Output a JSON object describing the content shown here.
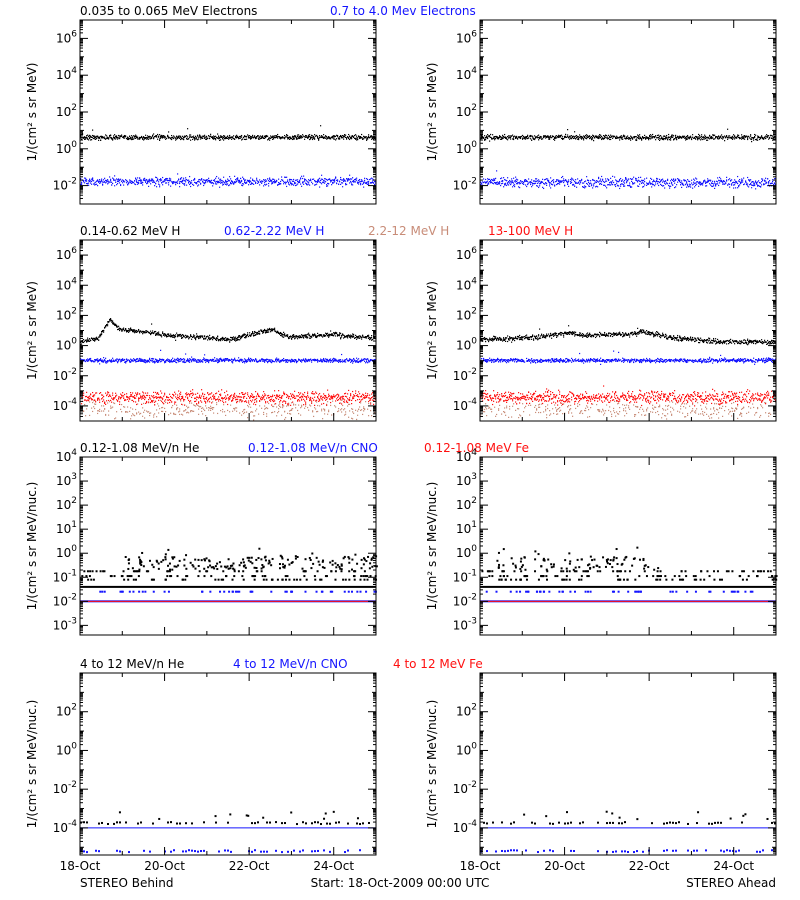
{
  "colors": {
    "black": "#000000",
    "blue": "#1414ff",
    "tan": "#c88c78",
    "red": "#ff1010"
  },
  "chart_data": [
    {
      "type": "scatter",
      "row": 0,
      "legend": [
        {
          "text": "0.035 to 0.065 MeV Electrons",
          "color": "black"
        },
        {
          "text": "0.7 to 4.0 Mev Electrons",
          "color": "blue"
        }
      ],
      "ylabel": "1/(cm² s sr MeV)",
      "yscale": "log",
      "ylim_exp": [
        -3,
        7
      ],
      "ytick_exps": [
        -2,
        0,
        2,
        4,
        6
      ],
      "panels": {
        "behind": [
          {
            "color": "black",
            "base_exp": 0.65,
            "noise": 0.06,
            "density": 0.9
          },
          {
            "color": "blue",
            "base_exp": -1.75,
            "noise": 0.1,
            "density": 0.9
          }
        ],
        "ahead": [
          {
            "color": "black",
            "base_exp": 0.65,
            "noise": 0.06,
            "density": 0.9
          },
          {
            "color": "blue",
            "base_exp": -1.8,
            "noise": 0.12,
            "density": 0.9
          }
        ]
      }
    },
    {
      "type": "scatter",
      "row": 1,
      "legend": [
        {
          "text": "0.14-0.62 MeV H",
          "color": "black"
        },
        {
          "text": "0.62-2.22 MeV H",
          "color": "blue"
        },
        {
          "text": "2.2-12 MeV H",
          "color": "tan"
        },
        {
          "text": "13-100 MeV H",
          "color": "red"
        }
      ],
      "ylabel": "1/(cm² s sr MeV)",
      "yscale": "log",
      "ylim_exp": [
        -5,
        7
      ],
      "ytick_exps": [
        -4,
        -2,
        0,
        2,
        4,
        6
      ],
      "panels": {
        "behind": [
          {
            "color": "tan",
            "base_exp": -4.2,
            "noise": 0.25,
            "density": 0.4
          },
          {
            "color": "red",
            "base_exp": -3.4,
            "noise": 0.18,
            "density": 0.9
          },
          {
            "color": "blue",
            "base_exp": -0.95,
            "noise": 0.06,
            "density": 0.9
          },
          {
            "color": "black",
            "base_exp": 0.2,
            "noise": 0.07,
            "density": 0.9,
            "profile": [
              [
                0,
                0.1
              ],
              [
                0.06,
                0.3
              ],
              [
                0.1,
                1.6
              ],
              [
                0.13,
                0.9
              ],
              [
                0.2,
                0.8
              ],
              [
                0.3,
                0.5
              ],
              [
                0.45,
                0.35
              ],
              [
                0.5,
                0.2
              ],
              [
                0.6,
                0.7
              ],
              [
                0.65,
                0.9
              ],
              [
                0.7,
                0.4
              ],
              [
                0.8,
                0.5
              ],
              [
                0.85,
                0.6
              ],
              [
                0.9,
                0.45
              ],
              [
                1.0,
                0.35
              ]
            ]
          }
        ],
        "ahead": [
          {
            "color": "tan",
            "base_exp": -4.2,
            "noise": 0.25,
            "density": 0.4
          },
          {
            "color": "red",
            "base_exp": -3.4,
            "noise": 0.18,
            "density": 0.9
          },
          {
            "color": "blue",
            "base_exp": -0.95,
            "noise": 0.06,
            "density": 0.9
          },
          {
            "color": "black",
            "base_exp": 0.2,
            "noise": 0.07,
            "density": 0.9,
            "profile": [
              [
                0,
                0.2
              ],
              [
                0.2,
                0.4
              ],
              [
                0.3,
                0.7
              ],
              [
                0.35,
                0.5
              ],
              [
                0.5,
                0.6
              ],
              [
                0.55,
                0.75
              ],
              [
                0.65,
                0.35
              ],
              [
                0.8,
                0.1
              ],
              [
                1.0,
                0.05
              ]
            ]
          }
        ]
      }
    },
    {
      "type": "scatter",
      "row": 2,
      "legend": [
        {
          "text": "0.12-1.08 MeV/n He",
          "color": "black"
        },
        {
          "text": "0.12-1.08 MeV/n CNO",
          "color": "blue"
        },
        {
          "text": "0.12-1.08 MeV Fe",
          "color": "red"
        }
      ],
      "ylabel": "1/(cm² s sr MeV/nuc.)",
      "yscale": "log",
      "ylim_exp": [
        -3.4,
        4
      ],
      "ytick_exps": [
        -3,
        -2,
        -1,
        0,
        1,
        2,
        3,
        4
      ],
      "panels": {
        "behind": [
          {
            "color": "black",
            "style": "levels",
            "levels": [
              -1.4,
              -1.1,
              -0.95,
              -0.75
            ],
            "base_exp": -1.1,
            "burst": [
              [
                0.15,
                0.6
              ],
              [
                0.55,
                1.0
              ]
            ]
          },
          {
            "color": "blue",
            "style": "levels",
            "levels": [
              -2.0,
              -1.6
            ],
            "base_exp": -2.0
          },
          {
            "color": "red",
            "style": "line",
            "base_exp": -2.0
          }
        ],
        "ahead": [
          {
            "color": "black",
            "style": "levels",
            "levels": [
              -1.4,
              -1.1,
              -0.95,
              -0.75
            ],
            "base_exp": -1.1,
            "burst": [
              [
                0.05,
                0.6
              ]
            ]
          },
          {
            "color": "blue",
            "style": "levels",
            "levels": [
              -2.0,
              -1.6
            ],
            "base_exp": -2.0
          },
          {
            "color": "red",
            "style": "line",
            "base_exp": -2.0
          }
        ]
      }
    },
    {
      "type": "scatter",
      "row": 3,
      "legend": [
        {
          "text": "4 to 12 MeV/n He",
          "color": "black"
        },
        {
          "text": "4 to 12 MeV/n CNO",
          "color": "blue"
        },
        {
          "text": "4 to 12 MeV Fe",
          "color": "red"
        }
      ],
      "ylabel": "1/(cm² s sr MeV/nuc.)",
      "yscale": "log",
      "ylim_exp": [
        -5.4,
        4
      ],
      "ytick_exps": [
        -4,
        -2,
        0,
        2
      ],
      "xticks": [
        "18-Oct",
        "20-Oct",
        "22-Oct",
        "24-Oct"
      ],
      "panels": {
        "behind": [
          {
            "color": "black",
            "style": "sparse",
            "base_exp": -3.7
          },
          {
            "color": "blue",
            "style": "line",
            "base_exp": -4.0
          },
          {
            "color": "blue",
            "style": "sparse",
            "base_exp": -5.15
          }
        ],
        "ahead": [
          {
            "color": "black",
            "style": "sparse",
            "base_exp": -3.7
          },
          {
            "color": "blue",
            "style": "line",
            "base_exp": -4.0
          },
          {
            "color": "blue",
            "style": "sparse",
            "base_exp": -5.15
          }
        ]
      }
    }
  ],
  "footer": {
    "left": "STEREO Behind",
    "center": "Start: 18-Oct-2009 00:00 UTC",
    "right": "STEREO Ahead"
  }
}
